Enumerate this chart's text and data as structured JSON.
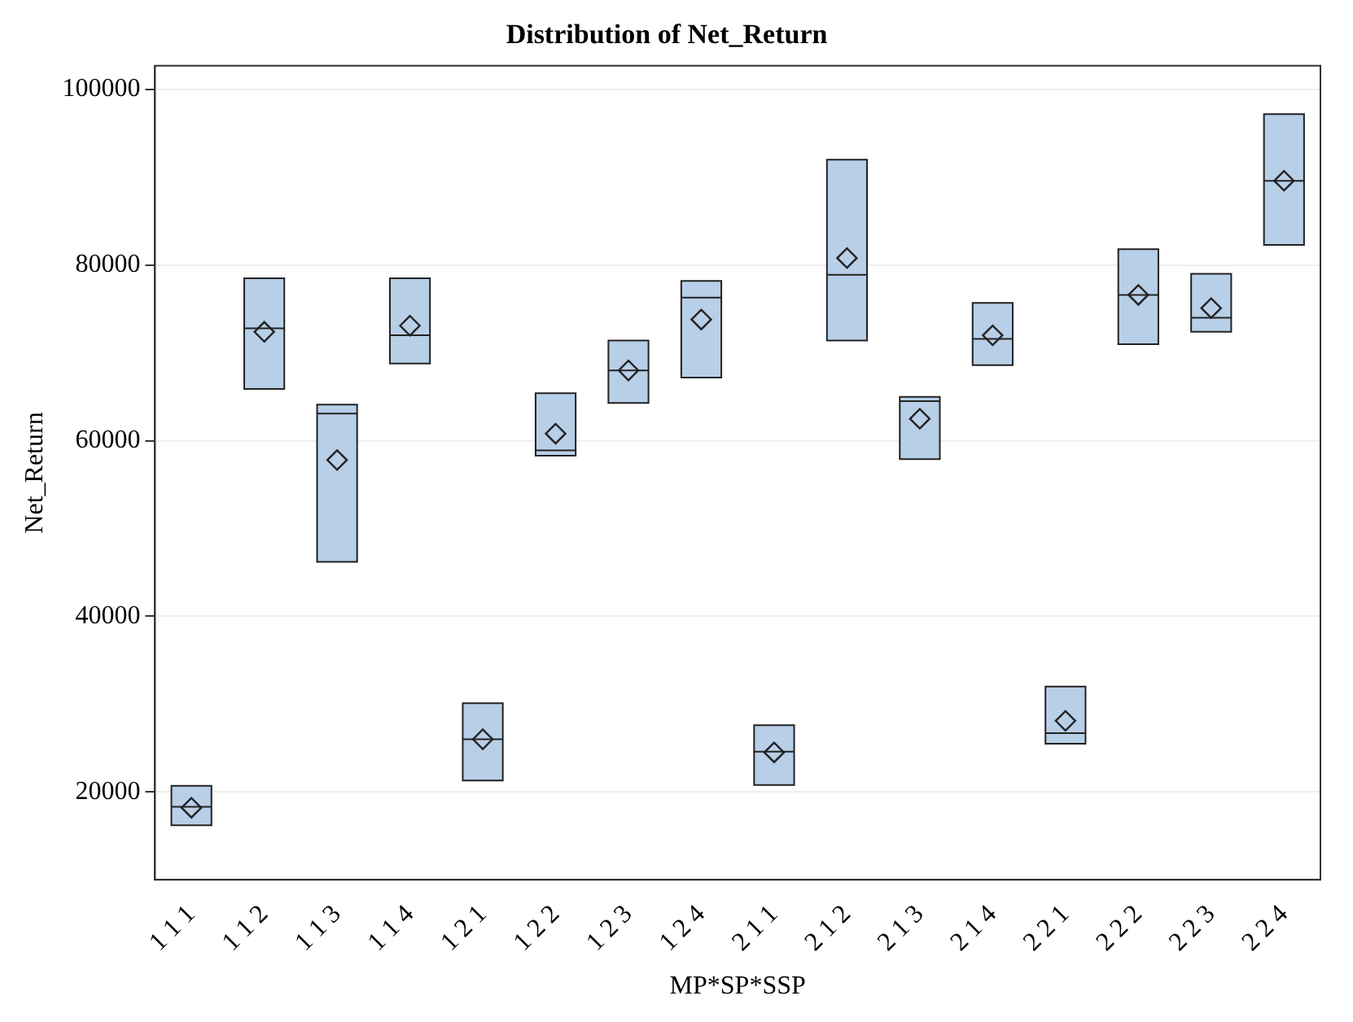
{
  "chart_data": {
    "type": "box",
    "title": "Distribution of Net_Return",
    "xlabel": "MP*SP*SSP",
    "ylabel": "Net_Return",
    "categories": [
      "1 1 1",
      "1 1 2",
      "1 1 3",
      "1 1 4",
      "1 2 1",
      "1 2 2",
      "1 2 3",
      "1 2 4",
      "2 1 1",
      "2 1 2",
      "2 1 3",
      "2 1 4",
      "2 2 1",
      "2 2 2",
      "2 2 3",
      "2 2 4"
    ],
    "color": "#b8cfe8",
    "boxes": [
      {
        "low": 16200,
        "q1": 16200,
        "median": 18300,
        "q3": 20700,
        "high": 20700,
        "mean": 18200
      },
      {
        "low": 65900,
        "q1": 65900,
        "median": 72800,
        "q3": 78500,
        "high": 78500,
        "mean": 72400
      },
      {
        "low": 46200,
        "q1": 46200,
        "median": 63100,
        "q3": 64100,
        "high": 64100,
        "mean": 57800
      },
      {
        "low": 68800,
        "q1": 68800,
        "median": 72000,
        "q3": 78500,
        "high": 78500,
        "mean": 73100
      },
      {
        "low": 21300,
        "q1": 21300,
        "median": 26000,
        "q3": 30100,
        "high": 30100,
        "mean": 26000
      },
      {
        "low": 58300,
        "q1": 58300,
        "median": 58900,
        "q3": 65400,
        "high": 65400,
        "mean": 60800
      },
      {
        "low": 64300,
        "q1": 64300,
        "median": 68000,
        "q3": 71400,
        "high": 71400,
        "mean": 68000
      },
      {
        "low": 67200,
        "q1": 67200,
        "median": 76300,
        "q3": 78200,
        "high": 78200,
        "mean": 73800
      },
      {
        "low": 20800,
        "q1": 20800,
        "median": 24600,
        "q3": 27600,
        "high": 27600,
        "mean": 24500
      },
      {
        "low": 71400,
        "q1": 71400,
        "median": 78900,
        "q3": 92000,
        "high": 92000,
        "mean": 80800
      },
      {
        "low": 57900,
        "q1": 57900,
        "median": 64500,
        "q3": 65000,
        "high": 65000,
        "mean": 62500
      },
      {
        "low": 68600,
        "q1": 68600,
        "median": 71600,
        "q3": 75700,
        "high": 75700,
        "mean": 72000
      },
      {
        "low": 25500,
        "q1": 25500,
        "median": 26700,
        "q3": 32000,
        "high": 32000,
        "mean": 28100
      },
      {
        "low": 71000,
        "q1": 71000,
        "median": 76600,
        "q3": 81800,
        "high": 81800,
        "mean": 76600
      },
      {
        "low": 72400,
        "q1": 72400,
        "median": 74000,
        "q3": 79000,
        "high": 79000,
        "mean": 75100
      },
      {
        "low": 82300,
        "q1": 82300,
        "median": 89600,
        "q3": 97200,
        "high": 97200,
        "mean": 89600
      }
    ],
    "ylim": [
      10000,
      102700
    ],
    "yticks": [
      20000,
      40000,
      60000,
      80000,
      100000
    ],
    "grid": "y",
    "marker": "diamond"
  }
}
